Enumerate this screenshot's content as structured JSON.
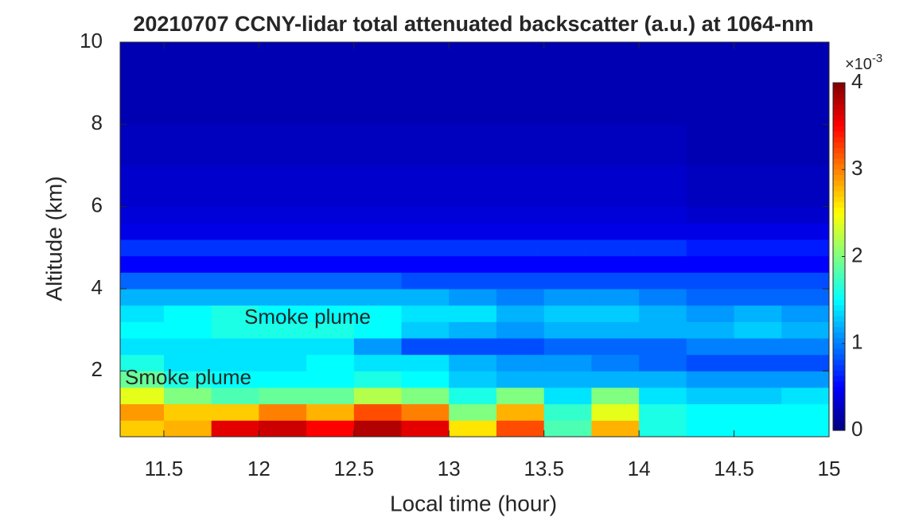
{
  "chart_data": {
    "type": "heatmap",
    "title": "20210707 CCNY-lidar total attenuated backscatter (a.u.) at 1064-nm",
    "xlabel": "Local time (hour)",
    "ylabel": "Altitude (km)",
    "xlim": [
      11.27,
      15
    ],
    "ylim": [
      0.4,
      10
    ],
    "xticks": [
      11.5,
      12,
      12.5,
      13,
      13.5,
      14,
      14.5,
      15
    ],
    "yticks": [
      2,
      4,
      6,
      8,
      10
    ],
    "colormap": "jet",
    "x_edges": [
      11.27,
      11.5,
      11.75,
      12,
      12.25,
      12.5,
      12.75,
      13,
      13.25,
      13.5,
      13.75,
      14,
      14.25,
      14.5,
      14.75,
      15
    ],
    "y_edges": [
      0.4,
      0.8,
      1.2,
      1.6,
      2.0,
      2.4,
      2.8,
      3.2,
      3.6,
      4.0,
      4.4,
      4.8,
      5.2,
      5.6,
      6,
      7,
      8,
      9,
      10
    ],
    "z": [
      [
        2.7,
        2.8,
        3.6,
        3.7,
        3.5,
        3.8,
        3.6,
        2.6,
        3.2,
        1.8,
        2.8,
        1.6,
        1.5,
        1.5,
        1.5
      ],
      [
        2.9,
        2.7,
        2.7,
        3.0,
        2.8,
        3.2,
        3.0,
        2.0,
        2.8,
        1.7,
        2.4,
        1.6,
        1.5,
        1.5,
        1.5
      ],
      [
        2.4,
        2.0,
        1.8,
        1.9,
        1.9,
        2.2,
        2.0,
        1.6,
        2.0,
        1.4,
        2.0,
        1.4,
        1.3,
        1.3,
        1.4
      ],
      [
        1.9,
        1.6,
        1.5,
        1.5,
        1.5,
        1.6,
        1.5,
        1.3,
        1.2,
        1.2,
        1.2,
        1.2,
        1.1,
        1.1,
        1.1
      ],
      [
        1.6,
        1.4,
        1.4,
        1.4,
        1.5,
        1.4,
        1.4,
        1.2,
        1.1,
        1.1,
        1.0,
        0.9,
        0.8,
        0.8,
        0.8
      ],
      [
        1.4,
        1.4,
        1.4,
        1.4,
        1.4,
        1.1,
        0.8,
        0.8,
        0.8,
        0.9,
        0.9,
        0.9,
        1.0,
        1.0,
        1.0
      ],
      [
        1.5,
        1.5,
        1.6,
        1.6,
        1.6,
        1.5,
        1.3,
        1.2,
        1.1,
        1.2,
        1.2,
        1.2,
        1.2,
        1.3,
        1.2
      ],
      [
        1.4,
        1.5,
        1.6,
        1.5,
        1.5,
        1.5,
        1.4,
        1.4,
        1.2,
        1.3,
        1.3,
        1.2,
        1.1,
        1.2,
        1.1
      ],
      [
        1.2,
        1.2,
        1.2,
        1.2,
        1.2,
        1.2,
        1.2,
        1.1,
        1.0,
        1.1,
        1.1,
        1.0,
        0.9,
        0.9,
        0.9
      ],
      [
        0.9,
        0.9,
        0.9,
        0.9,
        0.9,
        0.9,
        0.8,
        0.8,
        0.8,
        0.8,
        0.8,
        0.8,
        0.8,
        0.8,
        0.8
      ],
      [
        0.5,
        0.5,
        0.5,
        0.5,
        0.5,
        0.5,
        0.5,
        0.5,
        0.5,
        0.5,
        0.5,
        0.5,
        0.5,
        0.5,
        0.5
      ],
      [
        0.7,
        0.7,
        0.7,
        0.7,
        0.7,
        0.7,
        0.7,
        0.7,
        0.7,
        0.7,
        0.7,
        0.7,
        0.6,
        0.6,
        0.6
      ],
      [
        0.4,
        0.4,
        0.4,
        0.4,
        0.4,
        0.4,
        0.4,
        0.4,
        0.4,
        0.4,
        0.4,
        0.4,
        0.4,
        0.4,
        0.4
      ],
      [
        0.35,
        0.35,
        0.35,
        0.35,
        0.35,
        0.35,
        0.35,
        0.35,
        0.35,
        0.35,
        0.35,
        0.35,
        0.3,
        0.3,
        0.3
      ],
      [
        0.3,
        0.3,
        0.3,
        0.3,
        0.3,
        0.3,
        0.3,
        0.3,
        0.3,
        0.3,
        0.3,
        0.3,
        0.25,
        0.25,
        0.25
      ],
      [
        0.25,
        0.25,
        0.25,
        0.25,
        0.25,
        0.25,
        0.25,
        0.25,
        0.25,
        0.25,
        0.25,
        0.25,
        0.2,
        0.2,
        0.2
      ],
      [
        0.2,
        0.2,
        0.2,
        0.2,
        0.2,
        0.2,
        0.2,
        0.2,
        0.2,
        0.2,
        0.2,
        0.2,
        0.2,
        0.2,
        0.2
      ],
      [
        0.2,
        0.2,
        0.2,
        0.2,
        0.2,
        0.2,
        0.2,
        0.2,
        0.2,
        0.2,
        0.2,
        0.2,
        0.2,
        0.2,
        0.2
      ]
    ],
    "colorbar": {
      "clim": [
        0,
        4
      ],
      "ticks": [
        0,
        1,
        2,
        3,
        4
      ],
      "multiplier": "×10",
      "exponent": "-3"
    },
    "annotations": [
      "Smoke plume",
      "Smoke plume"
    ]
  }
}
